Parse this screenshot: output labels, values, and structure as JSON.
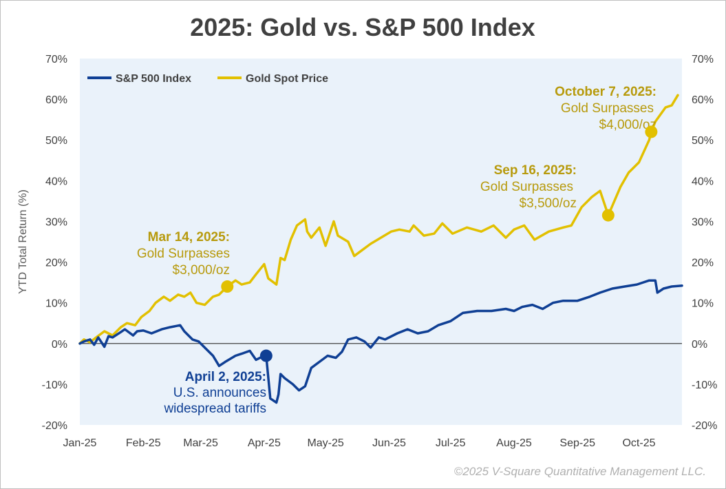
{
  "colors": {
    "sp500": "#0f3f94",
    "gold": "#e2c000",
    "gold_text": "#b79a0c",
    "plot_bg": "#eaf2fa",
    "zero_line": "#404040"
  },
  "copyright": "©2025 V-Square Quantitative Management LLC.",
  "chart_data": {
    "type": "line",
    "title": "2025: Gold vs. S&P 500 Index",
    "ylabel": "YTD Total Return (%)",
    "xlabel": "",
    "ylim": [
      -20,
      70
    ],
    "x_ticks": [
      "Jan-25",
      "Feb-25",
      "Mar-25",
      "Apr-25",
      "May-25",
      "Jun-25",
      "Jul-25",
      "Aug-25",
      "Sep-25",
      "Oct-25"
    ],
    "y_ticks_left": [
      "70%",
      "60%",
      "50%",
      "40%",
      "30%",
      "20%",
      "10%",
      "0%",
      "-10%",
      "-20%"
    ],
    "y_ticks_right": [
      "70%",
      "60%",
      "50%",
      "40%",
      "30%",
      "20%",
      "10%",
      "0%",
      "-10%",
      "-20%"
    ],
    "grid": false,
    "legend_position": "top-left",
    "legend": [
      "S&P 500 Index",
      "Gold Spot Price"
    ],
    "series": [
      {
        "name": "S&P 500 Index",
        "x": [
          "2025-01-01",
          "2025-01-03",
          "2025-01-06",
          "2025-01-08",
          "2025-01-10",
          "2025-01-13",
          "2025-01-15",
          "2025-01-17",
          "2025-01-21",
          "2025-01-23",
          "2025-01-27",
          "2025-01-29",
          "2025-02-01",
          "2025-02-05",
          "2025-02-10",
          "2025-02-14",
          "2025-02-19",
          "2025-02-21",
          "2025-02-25",
          "2025-02-28",
          "2025-03-04",
          "2025-03-07",
          "2025-03-10",
          "2025-03-13",
          "2025-03-18",
          "2025-03-21",
          "2025-03-25",
          "2025-03-28",
          "2025-04-01",
          "2025-04-02",
          "2025-04-04",
          "2025-04-07",
          "2025-04-08",
          "2025-04-09",
          "2025-04-11",
          "2025-04-15",
          "2025-04-18",
          "2025-04-21",
          "2025-04-24",
          "2025-04-28",
          "2025-05-02",
          "2025-05-06",
          "2025-05-09",
          "2025-05-12",
          "2025-05-16",
          "2025-05-20",
          "2025-05-23",
          "2025-05-27",
          "2025-05-30",
          "2025-06-05",
          "2025-06-10",
          "2025-06-15",
          "2025-06-20",
          "2025-06-25",
          "2025-07-01",
          "2025-07-07",
          "2025-07-14",
          "2025-07-21",
          "2025-07-28",
          "2025-08-01",
          "2025-08-05",
          "2025-08-10",
          "2025-08-15",
          "2025-08-20",
          "2025-08-25",
          "2025-09-01",
          "2025-09-07",
          "2025-09-12",
          "2025-09-18",
          "2025-09-24",
          "2025-09-30",
          "2025-10-03",
          "2025-10-06",
          "2025-10-09",
          "2025-10-10",
          "2025-10-13",
          "2025-10-17",
          "2025-10-22"
        ],
        "values": [
          0,
          0.5,
          1.0,
          -0.3,
          1.5,
          -0.8,
          1.8,
          1.5,
          2.8,
          3.5,
          2.0,
          3.0,
          3.2,
          2.5,
          3.5,
          4.0,
          4.5,
          3.0,
          1.0,
          0.5,
          -1.5,
          -3.0,
          -5.5,
          -4.5,
          -3.0,
          -2.5,
          -1.8,
          -4.0,
          -3.0,
          -3.0,
          -13.5,
          -14.5,
          -12.5,
          -7.5,
          -8.5,
          -10.0,
          -11.5,
          -10.5,
          -6.0,
          -4.5,
          -3.0,
          -3.5,
          -2.0,
          1.0,
          1.5,
          0.5,
          -1.0,
          1.5,
          1.0,
          2.5,
          3.5,
          2.5,
          3.0,
          4.5,
          5.5,
          7.5,
          8.0,
          8.0,
          8.5,
          8.0,
          9.0,
          9.5,
          8.5,
          10.0,
          10.5,
          10.5,
          11.5,
          12.5,
          13.5,
          14.0,
          14.5,
          15.0,
          15.5,
          15.5,
          12.5,
          13.5,
          14.0,
          14.2
        ]
      },
      {
        "name": "Gold Spot Price",
        "x": [
          "2025-01-01",
          "2025-01-03",
          "2025-01-06",
          "2025-01-09",
          "2025-01-13",
          "2025-01-17",
          "2025-01-21",
          "2025-01-24",
          "2025-01-28",
          "2025-01-31",
          "2025-02-04",
          "2025-02-07",
          "2025-02-11",
          "2025-02-14",
          "2025-02-18",
          "2025-02-21",
          "2025-02-24",
          "2025-02-27",
          "2025-03-03",
          "2025-03-07",
          "2025-03-10",
          "2025-03-14",
          "2025-03-18",
          "2025-03-21",
          "2025-03-25",
          "2025-03-28",
          "2025-04-01",
          "2025-04-03",
          "2025-04-07",
          "2025-04-09",
          "2025-04-11",
          "2025-04-14",
          "2025-04-17",
          "2025-04-21",
          "2025-04-22",
          "2025-04-24",
          "2025-04-28",
          "2025-05-01",
          "2025-05-05",
          "2025-05-07",
          "2025-05-12",
          "2025-05-15",
          "2025-05-19",
          "2025-05-23",
          "2025-05-28",
          "2025-06-02",
          "2025-06-06",
          "2025-06-11",
          "2025-06-13",
          "2025-06-18",
          "2025-06-23",
          "2025-06-27",
          "2025-07-02",
          "2025-07-09",
          "2025-07-16",
          "2025-07-22",
          "2025-07-28",
          "2025-08-01",
          "2025-08-06",
          "2025-08-11",
          "2025-08-18",
          "2025-08-25",
          "2025-08-29",
          "2025-09-03",
          "2025-09-08",
          "2025-09-12",
          "2025-09-16",
          "2025-09-22",
          "2025-09-26",
          "2025-10-01",
          "2025-10-06",
          "2025-10-07",
          "2025-10-09",
          "2025-10-14",
          "2025-10-17",
          "2025-10-20"
        ],
        "values": [
          0,
          1.0,
          0.3,
          1.5,
          3.0,
          2.0,
          4.0,
          5.0,
          4.5,
          6.5,
          8.0,
          10.0,
          11.5,
          10.5,
          12.0,
          11.5,
          12.5,
          10.0,
          9.5,
          11.5,
          12.0,
          14.0,
          15.5,
          14.5,
          15.0,
          17.0,
          19.5,
          16.0,
          14.5,
          21.0,
          20.5,
          25.5,
          29.0,
          30.5,
          27.5,
          26.0,
          28.5,
          24.0,
          30.0,
          26.5,
          25.0,
          21.5,
          23.0,
          24.5,
          26.0,
          27.5,
          28.0,
          27.5,
          29.0,
          26.5,
          27.0,
          29.5,
          27.0,
          28.5,
          27.5,
          29.0,
          26.0,
          28.0,
          29.0,
          25.5,
          27.5,
          28.5,
          29.0,
          33.5,
          36.0,
          37.5,
          31.5,
          38.5,
          42.0,
          44.5,
          50.0,
          52.0,
          54.5,
          58.0,
          58.5,
          61.0
        ]
      }
    ],
    "annotations": [
      {
        "series": "S&P 500 Index",
        "x": "2025-04-02",
        "y": -3.0,
        "head": "April 2, 2025:",
        "lines": [
          "U.S. announces",
          "widespread tariffs"
        ]
      },
      {
        "series": "Gold Spot Price",
        "x": "2025-03-14",
        "y": 14.0,
        "head": "Mar 14, 2025:",
        "lines": [
          "Gold Surpasses",
          "$3,000/oz"
        ]
      },
      {
        "series": "Gold Spot Price",
        "x": "2025-09-16",
        "y": 31.5,
        "head": "Sep 16, 2025:",
        "lines": [
          "Gold Surpasses",
          "$3,500/oz"
        ]
      },
      {
        "series": "Gold Spot Price",
        "x": "2025-10-07",
        "y": 52.0,
        "head": "October 7, 2025:",
        "lines": [
          "Gold Surpasses",
          "$4,000/oz"
        ]
      }
    ]
  }
}
